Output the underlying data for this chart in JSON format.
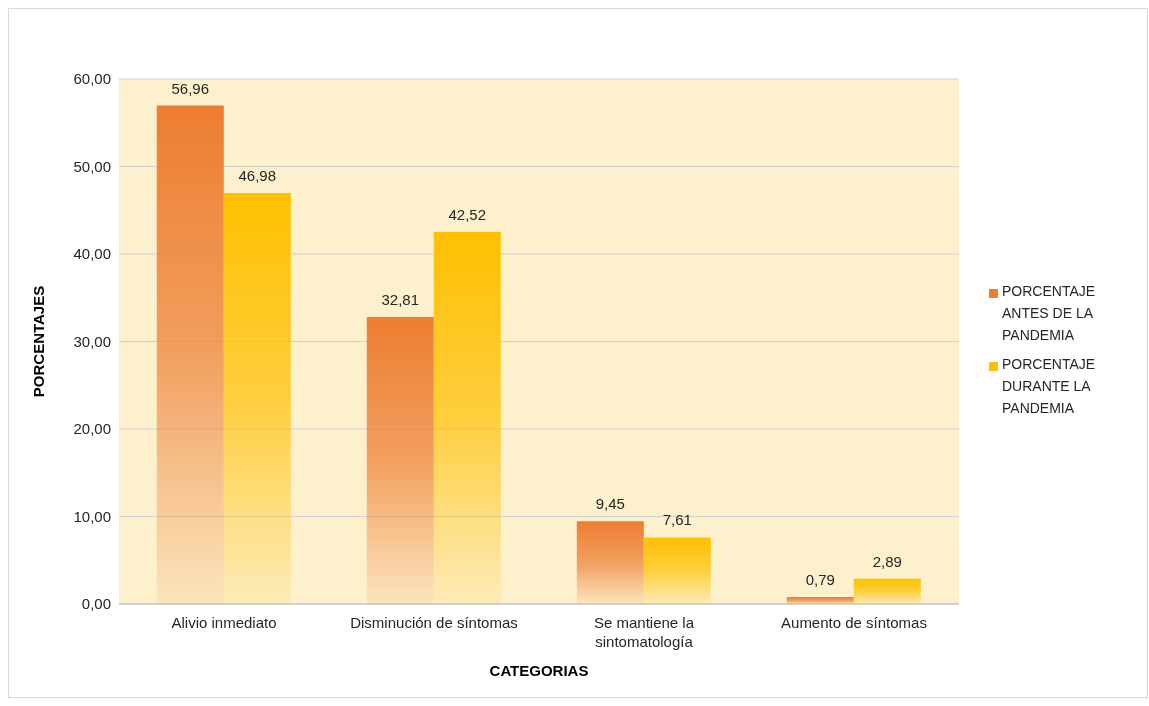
{
  "chart_data": {
    "type": "bar",
    "xlabel": "CATEGORIAS",
    "ylabel": "PORCENTAJES",
    "categories": [
      "Alivio inmediato",
      "Disminución de síntomas",
      "Se mantiene la sintomatología",
      "Aumento de síntomas"
    ],
    "series": [
      {
        "name": "PORCENTAJE ANTES DE LA PANDEMIA",
        "color": "#ed7d31",
        "values": [
          56.96,
          32.81,
          9.45,
          0.79
        ],
        "value_labels": [
          "56,96",
          "32,81",
          "9,45",
          "0,79"
        ]
      },
      {
        "name": "PORCENTAJE DURANTE LA PANDEMIA",
        "color": "#ffc000",
        "values": [
          46.98,
          42.52,
          7.61,
          2.89
        ],
        "value_labels": [
          "46,98",
          "42,52",
          "7,61",
          "2,89"
        ]
      }
    ],
    "ylim": [
      0,
      60
    ],
    "yticks": [
      {
        "value": 0,
        "label": "0,00"
      },
      {
        "value": 10,
        "label": "10,00"
      },
      {
        "value": 20,
        "label": "20,00"
      },
      {
        "value": 30,
        "label": "30,00"
      },
      {
        "value": 40,
        "label": "40,00"
      },
      {
        "value": 50,
        "label": "50,00"
      },
      {
        "value": 60,
        "label": "60,00"
      }
    ],
    "grid": "y",
    "legend": "right"
  }
}
